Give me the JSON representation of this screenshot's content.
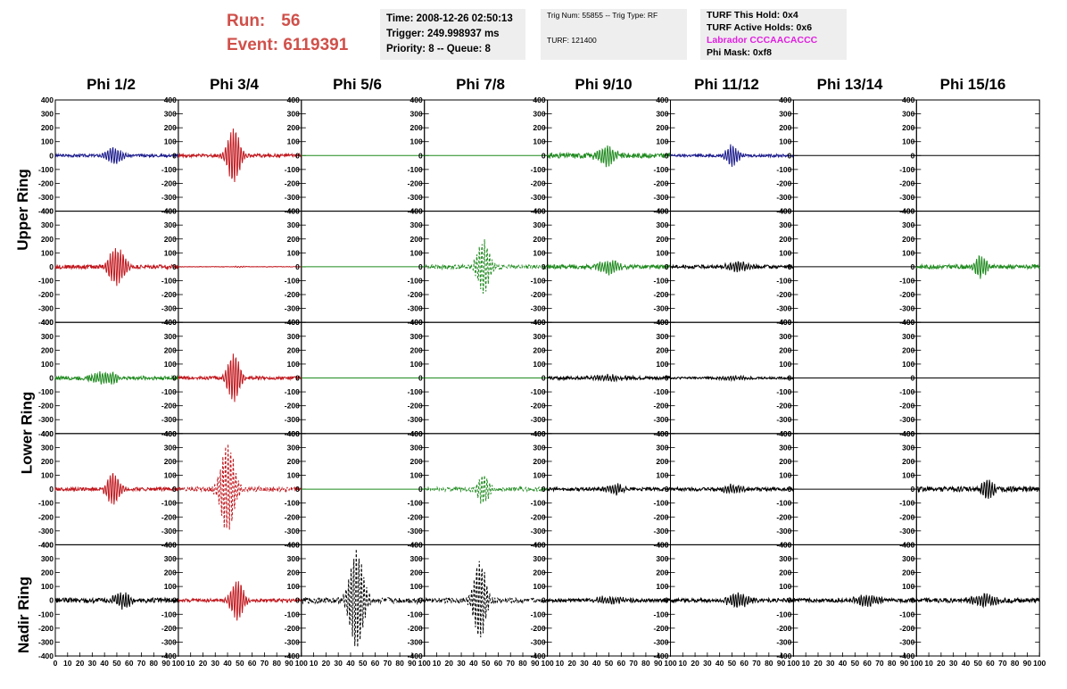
{
  "header": {
    "run_label": "Run:",
    "run_value": "56",
    "event_label": "Event:",
    "event_value": "6119391"
  },
  "time_box": {
    "time": "Time: 2008-12-26 02:50:13",
    "trigger": "Trigger: 249.998937 ms",
    "priority": "Priority: 8 -- Queue: 8"
  },
  "trig_box": {
    "trig": "Trig Num: 55855 -- Trig Type: RF",
    "turf": "TURF: 121400"
  },
  "turf_box": {
    "this_hold": "TURF This Hold: 0x4",
    "active_holds": "TURF Active Holds: 0x6",
    "labrador": "Labrador CCCAACACCC",
    "phi_mask": "Phi Mask: 0xf8"
  },
  "colors": {
    "red": "#c0161c",
    "blue": "#1a1a8c",
    "green": "#1f8a1f",
    "black": "#000000",
    "run_text": "#d0504a",
    "labrador": "#e020e0"
  },
  "phi_labels": [
    "Phi 1/2",
    "Phi 3/4",
    "Phi 5/6",
    "Phi 7/8",
    "Phi 9/10",
    "Phi 11/12",
    "Phi 13/14",
    "Phi 15/16"
  ],
  "ring_labels": [
    "Upper Ring",
    "Lower Ring",
    "Nadir Ring"
  ],
  "chart_data": {
    "type": "line",
    "grid": false,
    "legend": "none",
    "ylim": [
      -400,
      400
    ],
    "xlim": [
      0,
      100
    ],
    "y_ticks": [
      400,
      300,
      200,
      100,
      0,
      -100,
      -200,
      -300,
      -400
    ],
    "x_ticks": [
      0,
      10,
      20,
      30,
      40,
      50,
      60,
      70,
      80,
      90,
      100
    ],
    "rows": 5,
    "cols": 8,
    "panels": [
      [
        {
          "color": "blue",
          "amp": 60,
          "center": 48,
          "width": 7,
          "noise": 10,
          "dash": false
        },
        {
          "color": "red",
          "amp": 200,
          "center": 45,
          "width": 6,
          "noise": 12,
          "dash": false
        },
        {
          "color": "green",
          "amp": 0,
          "center": 50,
          "width": 6,
          "noise": 0,
          "dash": false
        },
        {
          "color": "green",
          "amp": 0,
          "center": 50,
          "width": 6,
          "noise": 0,
          "dash": false
        },
        {
          "color": "green",
          "amp": 70,
          "center": 48,
          "width": 8,
          "noise": 18,
          "dash": false
        },
        {
          "color": "blue",
          "amp": 75,
          "center": 50,
          "width": 6,
          "noise": 10,
          "dash": false
        },
        {
          "color": "black",
          "amp": 0,
          "center": 50,
          "width": 6,
          "noise": 0,
          "dash": false
        },
        {
          "color": "black",
          "amp": 0,
          "center": 50,
          "width": 6,
          "noise": 0,
          "dash": false
        }
      ],
      [
        {
          "color": "red",
          "amp": 130,
          "center": 50,
          "width": 8,
          "noise": 15,
          "dash": false
        },
        {
          "color": "red",
          "amp": 4,
          "center": 50,
          "width": 6,
          "noise": 2,
          "dash": false
        },
        {
          "color": "green",
          "amp": 0,
          "center": 50,
          "width": 6,
          "noise": 0,
          "dash": false
        },
        {
          "color": "green",
          "amp": 190,
          "center": 48,
          "width": 6,
          "noise": 15,
          "dash": true
        },
        {
          "color": "green",
          "amp": 50,
          "center": 50,
          "width": 9,
          "noise": 14,
          "dash": false
        },
        {
          "color": "black",
          "amp": 35,
          "center": 55,
          "width": 10,
          "noise": 12,
          "dash": false
        },
        {
          "color": "black",
          "amp": 0,
          "center": 50,
          "width": 6,
          "noise": 0,
          "dash": false
        },
        {
          "color": "green",
          "amp": 80,
          "center": 52,
          "width": 6,
          "noise": 15,
          "dash": false
        }
      ],
      [
        {
          "color": "green",
          "amp": 45,
          "center": 40,
          "width": 12,
          "noise": 14,
          "dash": false
        },
        {
          "color": "red",
          "amp": 170,
          "center": 45,
          "width": 6,
          "noise": 12,
          "dash": false
        },
        {
          "color": "green",
          "amp": 0,
          "center": 50,
          "width": 6,
          "noise": 0,
          "dash": false
        },
        {
          "color": "green",
          "amp": 0,
          "center": 50,
          "width": 6,
          "noise": 0,
          "dash": false
        },
        {
          "color": "black",
          "amp": 20,
          "center": 50,
          "width": 12,
          "noise": 12,
          "dash": false
        },
        {
          "color": "black",
          "amp": 15,
          "center": 50,
          "width": 12,
          "noise": 8,
          "dash": false
        },
        {
          "color": "black",
          "amp": 0,
          "center": 50,
          "width": 6,
          "noise": 0,
          "dash": false
        },
        {
          "color": "black",
          "amp": 0,
          "center": 50,
          "width": 6,
          "noise": 0,
          "dash": false
        }
      ],
      [
        {
          "color": "red",
          "amp": 120,
          "center": 47,
          "width": 6,
          "noise": 12,
          "dash": false
        },
        {
          "color": "red",
          "amp": 320,
          "center": 40,
          "width": 7,
          "noise": 18,
          "dash": true
        },
        {
          "color": "green",
          "amp": 0,
          "center": 50,
          "width": 6,
          "noise": 0,
          "dash": false
        },
        {
          "color": "green",
          "amp": 110,
          "center": 48,
          "width": 6,
          "noise": 14,
          "dash": true
        },
        {
          "color": "black",
          "amp": 35,
          "center": 55,
          "width": 8,
          "noise": 12,
          "dash": false
        },
        {
          "color": "black",
          "amp": 30,
          "center": 50,
          "width": 10,
          "noise": 12,
          "dash": false
        },
        {
          "color": "black",
          "amp": 0,
          "center": 50,
          "width": 6,
          "noise": 0,
          "dash": false
        },
        {
          "color": "black",
          "amp": 80,
          "center": 58,
          "width": 5,
          "noise": 18,
          "dash": false
        }
      ],
      [
        {
          "color": "black",
          "amp": 55,
          "center": 55,
          "width": 8,
          "noise": 18,
          "dash": false
        },
        {
          "color": "red",
          "amp": 150,
          "center": 48,
          "width": 6,
          "noise": 12,
          "dash": false
        },
        {
          "color": "black",
          "amp": 360,
          "center": 45,
          "width": 7,
          "noise": 22,
          "dash": true
        },
        {
          "color": "black",
          "amp": 290,
          "center": 45,
          "width": 6,
          "noise": 18,
          "dash": true
        },
        {
          "color": "black",
          "amp": 25,
          "center": 50,
          "width": 14,
          "noise": 12,
          "dash": false
        },
        {
          "color": "black",
          "amp": 50,
          "center": 55,
          "width": 10,
          "noise": 14,
          "dash": false
        },
        {
          "color": "black",
          "amp": 40,
          "center": 60,
          "width": 10,
          "noise": 14,
          "dash": false
        },
        {
          "color": "black",
          "amp": 40,
          "center": 55,
          "width": 12,
          "noise": 16,
          "dash": false
        }
      ]
    ]
  }
}
